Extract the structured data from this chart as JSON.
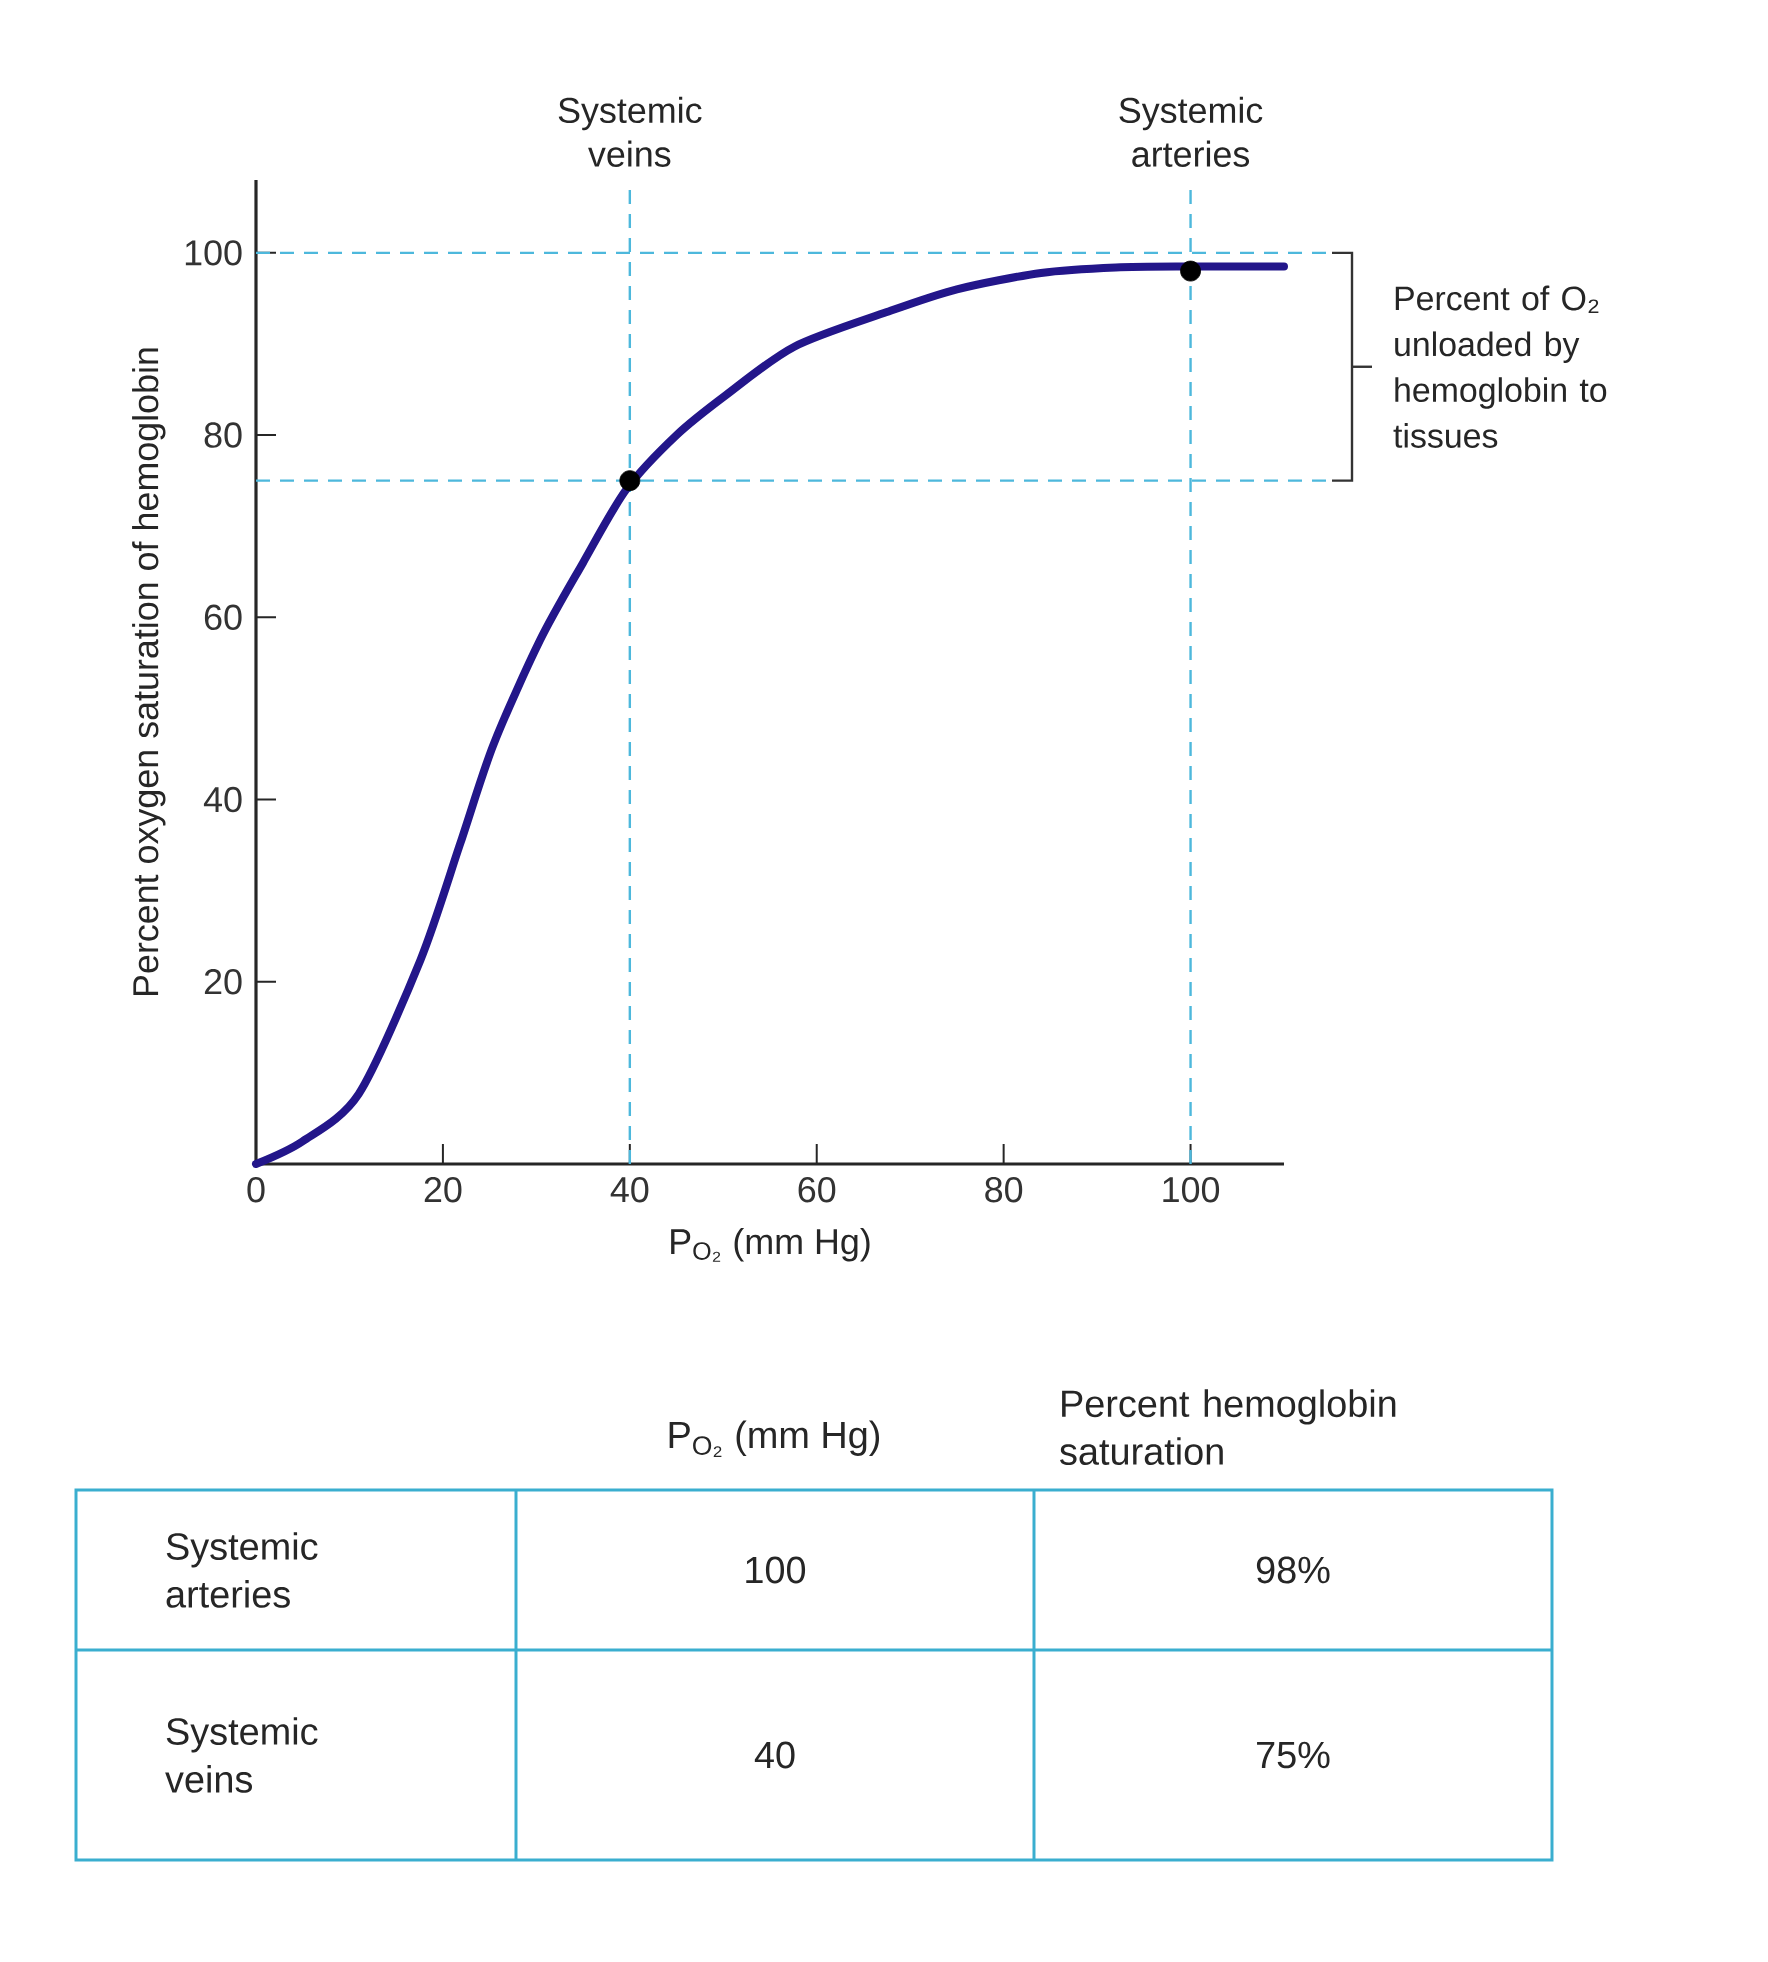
{
  "chart_data": {
    "type": "line",
    "xlabel": "P$_{O₂}$ (mm Hg)",
    "ylabel": "Percent oxygen saturation of hemoglobin",
    "xlim": [
      0,
      110
    ],
    "ylim": [
      0,
      108
    ],
    "xticks": [
      0,
      20,
      40,
      60,
      80,
      100
    ],
    "yticks": [
      20,
      40,
      60,
      80,
      100
    ],
    "series": [
      {
        "color": "#23168a",
        "x": [
          0,
          5,
          11,
          17.6,
          21.8,
          25.4,
          30.4,
          35,
          39.6,
          45,
          50.3,
          57.6,
          67.5,
          75,
          84,
          92,
          100,
          110
        ],
        "values": [
          0,
          2.5,
          7.7,
          22.4,
          35,
          46,
          57.5,
          66,
          74,
          80,
          84.4,
          89.7,
          93.5,
          96,
          97.8,
          98.4,
          98.5,
          98.5
        ]
      },
      {
        "type": "scatter",
        "color": "#000000",
        "marker": "circle",
        "x": [
          100,
          40
        ],
        "values": [
          98,
          75
        ]
      }
    ],
    "ref_lines": [
      {
        "axis": "x",
        "value": 40,
        "label": "Systemic veins",
        "color": "#4db8dc",
        "line_style": "dashed"
      },
      {
        "axis": "x",
        "value": 100,
        "label": "Systemic arteries",
        "color": "#4db8dc",
        "line_style": "dashed"
      },
      {
        "axis": "y",
        "value": 100,
        "color": "#4db8dc",
        "line_style": "dashed"
      },
      {
        "axis": "y",
        "value": 75,
        "color": "#4db8dc",
        "line_style": "dashed"
      }
    ],
    "annotations": [
      "Percent of O₂ unloaded by hemoglobin to tissues",
      "P$_{O₂}$ (mm Hg)",
      "Percent hemoglobin saturation",
      "Systemic arteries",
      "100",
      "98%",
      "Systemic veins",
      "40",
      "75%"
    ]
  }
}
